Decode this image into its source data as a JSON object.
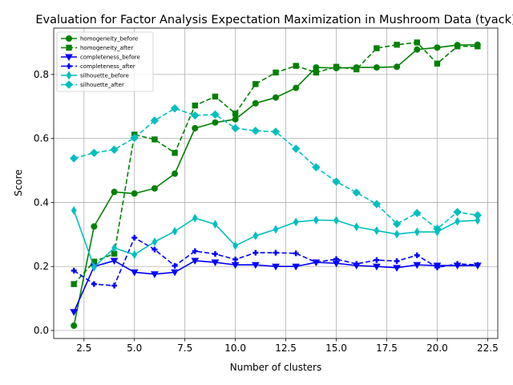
{
  "chart_data": {
    "type": "line",
    "title": "Evaluation for Factor Analysis Expectation Maximization in Mushroom Data (tyack)",
    "xlabel": "Number of clusters",
    "ylabel": "Score",
    "xlim": [
      1.0,
      23.0
    ],
    "ylim": [
      -0.025,
      0.945
    ],
    "xticks": [
      2.5,
      5.0,
      7.5,
      10.0,
      12.5,
      15.0,
      17.5,
      20.0,
      22.5
    ],
    "xtick_labels": [
      "2.5",
      "5.0",
      "7.5",
      "10.0",
      "12.5",
      "15.0",
      "17.5",
      "20.0",
      "22.5"
    ],
    "yticks": [
      0.0,
      0.2,
      0.4,
      0.6,
      0.8
    ],
    "ytick_labels": [
      "0.0",
      "0.2",
      "0.4",
      "0.6",
      "0.8"
    ],
    "grid": true,
    "legend_position": "top-left",
    "x": [
      2,
      3,
      4,
      5,
      6,
      7,
      8,
      9,
      10,
      11,
      12,
      13,
      14,
      15,
      16,
      17,
      18,
      19,
      20,
      21,
      22
    ],
    "series": [
      {
        "name": "homogeneity_before",
        "color": "#008000",
        "dash": "solid",
        "marker": "circle",
        "values": [
          0.015,
          0.325,
          0.433,
          0.428,
          0.444,
          0.49,
          0.632,
          0.65,
          0.66,
          0.71,
          0.728,
          0.758,
          0.822,
          0.82,
          0.822,
          0.822,
          0.824,
          0.878,
          0.884,
          0.892,
          0.893
        ]
      },
      {
        "name": "homogeneity_after",
        "color": "#008000",
        "dash": "dashed",
        "marker": "square",
        "values": [
          0.145,
          0.215,
          0.24,
          0.612,
          0.597,
          0.555,
          0.703,
          0.731,
          0.678,
          0.77,
          0.806,
          0.827,
          0.806,
          0.824,
          0.816,
          0.882,
          0.893,
          0.9,
          0.834,
          0.888,
          0.888
        ]
      },
      {
        "name": "completeness_before",
        "color": "#0000ff",
        "dash": "solid",
        "marker": "triangle-down",
        "values": [
          0.058,
          0.2,
          0.218,
          0.182,
          0.176,
          0.182,
          0.218,
          0.213,
          0.205,
          0.205,
          0.2,
          0.2,
          0.213,
          0.21,
          0.203,
          0.2,
          0.196,
          0.205,
          0.203,
          0.203,
          0.203
        ]
      },
      {
        "name": "completeness_after",
        "color": "#0000ff",
        "dash": "dashed",
        "marker": "plus",
        "values": [
          0.187,
          0.145,
          0.14,
          0.29,
          0.253,
          0.202,
          0.248,
          0.239,
          0.222,
          0.243,
          0.243,
          0.241,
          0.213,
          0.223,
          0.208,
          0.22,
          0.217,
          0.235,
          0.197,
          0.208,
          0.205
        ]
      },
      {
        "name": "silhouette_before",
        "color": "#00bfbf",
        "dash": "solid",
        "marker": "thin-diamond",
        "values": [
          0.375,
          0.198,
          0.258,
          0.237,
          0.277,
          0.31,
          0.351,
          0.332,
          0.265,
          0.296,
          0.316,
          0.339,
          0.345,
          0.344,
          0.324,
          0.312,
          0.301,
          0.308,
          0.308,
          0.341,
          0.344
        ]
      },
      {
        "name": "silhouette_after",
        "color": "#00bfbf",
        "dash": "dashed",
        "marker": "diamond",
        "values": [
          0.538,
          0.555,
          0.565,
          0.602,
          0.656,
          0.694,
          0.672,
          0.675,
          0.632,
          0.624,
          0.621,
          0.568,
          0.51,
          0.465,
          0.431,
          0.395,
          0.333,
          0.367,
          0.318,
          0.37,
          0.36
        ]
      }
    ]
  }
}
